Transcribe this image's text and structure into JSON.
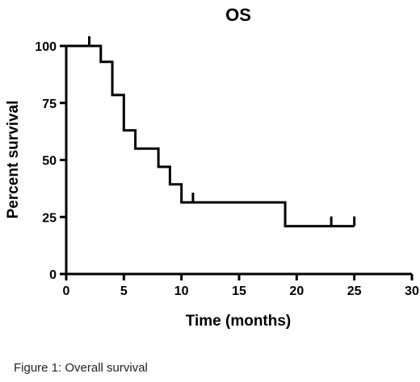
{
  "caption": "Figure 1: Overall survival",
  "chart_data": {
    "type": "line",
    "title": "OS",
    "xlabel": "Time (months)",
    "ylabel": "Percent survival",
    "xlim": [
      0,
      30
    ],
    "ylim": [
      0,
      100
    ],
    "xticks": [
      0,
      5,
      10,
      15,
      20,
      25,
      30
    ],
    "yticks": [
      0,
      25,
      50,
      75,
      100
    ],
    "grid": false,
    "series": [
      {
        "step": "post",
        "x": [
          0,
          3,
          4,
          5,
          6,
          8,
          9,
          10,
          19,
          25
        ],
        "y": [
          100,
          93,
          78.5,
          63,
          55,
          47,
          39.3,
          31.4,
          21,
          21
        ],
        "censored": [
          {
            "x": 2,
            "y": 100
          },
          {
            "x": 11,
            "y": 31.4
          },
          {
            "x": 23,
            "y": 21
          },
          {
            "x": 25,
            "y": 21
          }
        ]
      }
    ],
    "color": "#000000"
  }
}
